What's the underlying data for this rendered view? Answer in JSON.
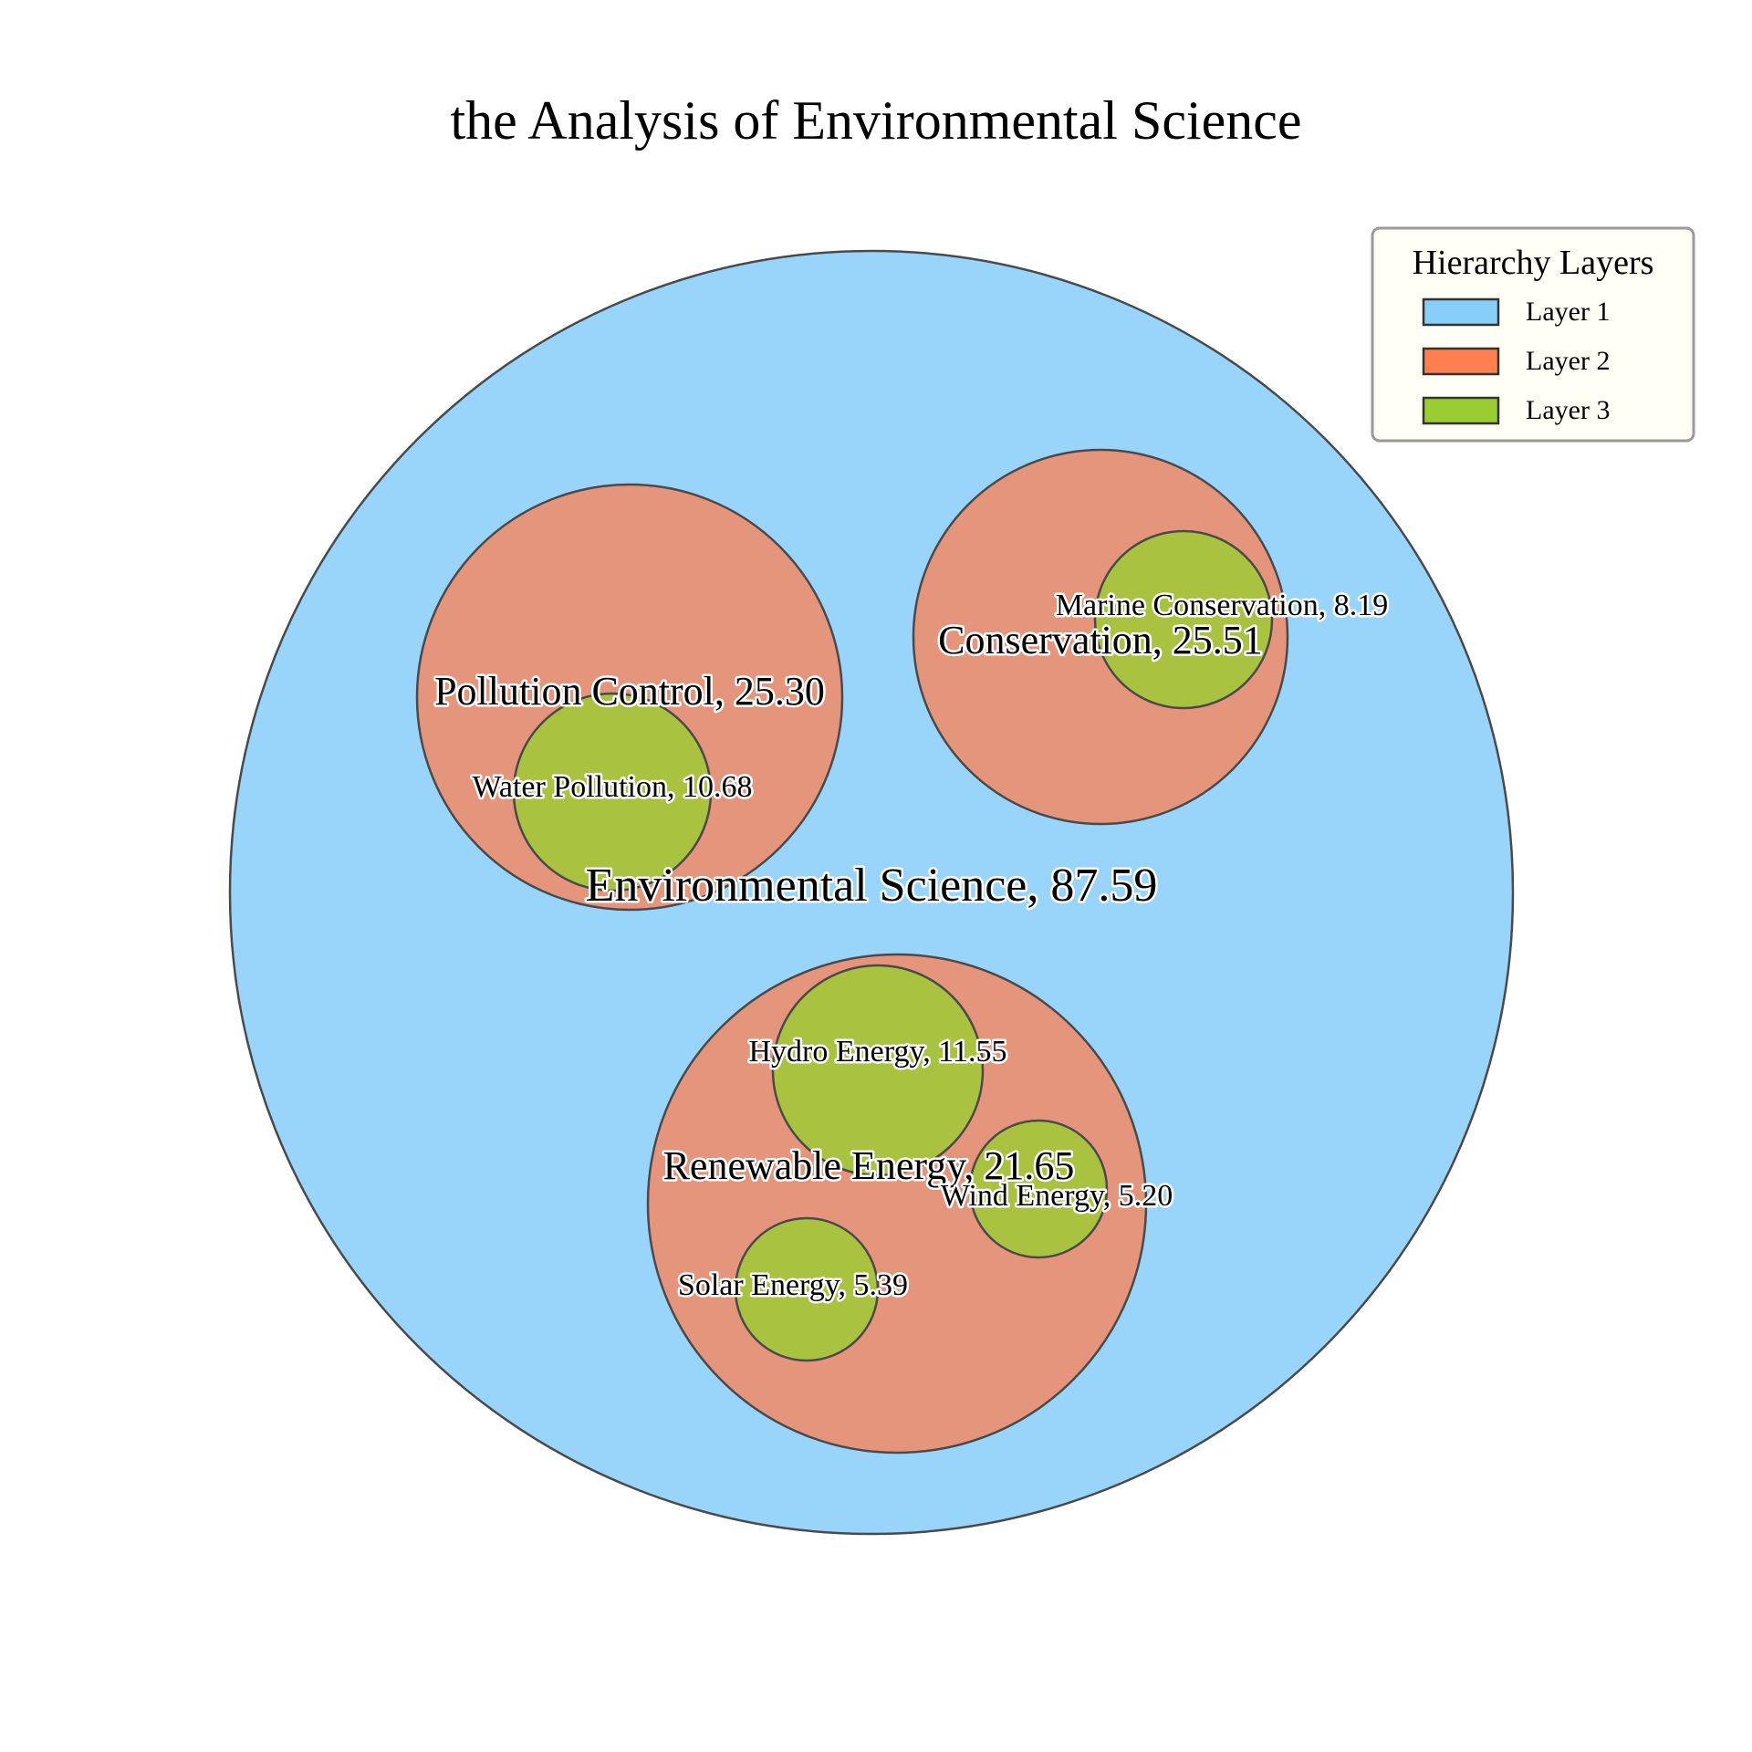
{
  "chart_data": {
    "type": "circle-packing",
    "title": "the Analysis of Environmental Science",
    "legend": {
      "title": "Hierarchy Layers",
      "placement": "top-right",
      "entries": [
        {
          "label": "Layer 1",
          "color": "#87CEFA"
        },
        {
          "label": "Layer 2",
          "color": "#FF7F50"
        },
        {
          "label": "Layer 3",
          "color": "#9ACD32"
        }
      ]
    },
    "root": {
      "name": "Environmental Science",
      "value": 87.59,
      "label": "Environmental Science, 87.59",
      "children": [
        {
          "name": "Pollution Control",
          "value": 25.3,
          "label": "Pollution Control, 25.30",
          "children": [
            {
              "name": "Water Pollution",
              "value": 10.68,
              "label": "Water Pollution, 10.68"
            }
          ]
        },
        {
          "name": "Conservation",
          "value": 25.51,
          "label": "Conservation, 25.51",
          "children": [
            {
              "name": "Marine Conservation",
              "value": 8.19,
              "label": "Marine Conservation, 8.19"
            }
          ]
        },
        {
          "name": "Renewable Energy",
          "value": 21.65,
          "label": "Renewable Energy, 21.65",
          "children": [
            {
              "name": "Hydro Energy",
              "value": 11.55,
              "label": "Hydro Energy, 11.55"
            },
            {
              "name": "Wind Energy",
              "value": 5.2,
              "label": "Wind Energy, 5.20"
            },
            {
              "name": "Solar Energy",
              "value": 5.39,
              "label": "Solar Energy, 5.39"
            }
          ]
        }
      ]
    }
  }
}
